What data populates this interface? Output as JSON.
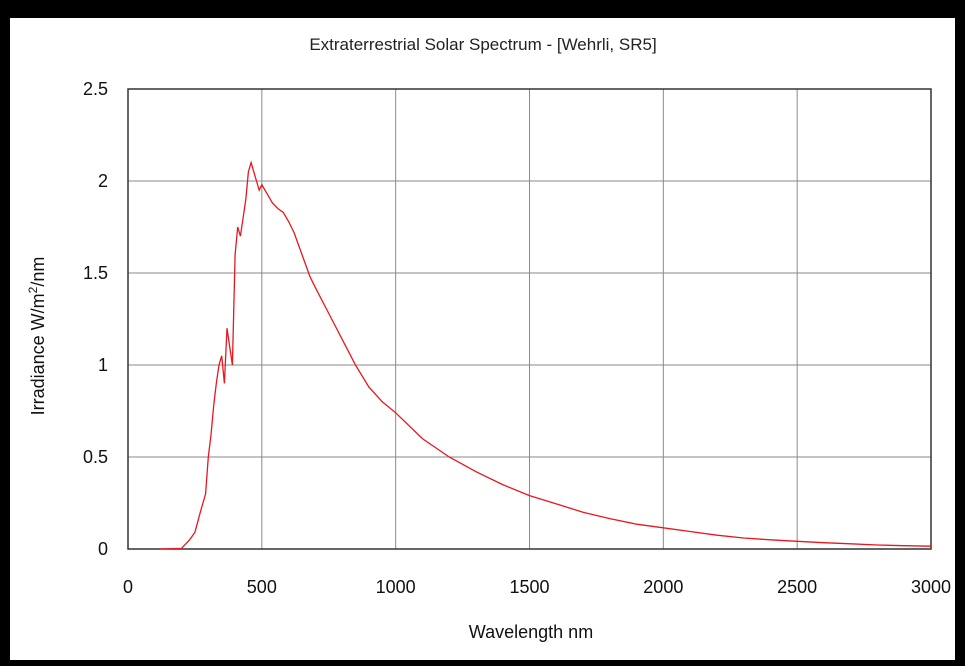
{
  "chart_data": {
    "type": "line",
    "title": "Extraterrestrial Solar Spectrum - [Wehrli, SR5]",
    "xlabel": "Wavelength nm",
    "ylabel_main": "Irradiance W/m",
    "ylabel_sup": "2",
    "ylabel_tail": "/nm",
    "xlim": [
      0,
      3000
    ],
    "ylim": [
      0,
      2.5
    ],
    "xticks": [
      "0",
      "500",
      "1000",
      "1500",
      "2000",
      "2500",
      "3000"
    ],
    "yticks": [
      "0",
      "0.5",
      "1",
      "1.5",
      "2",
      "2.5"
    ],
    "grid": true,
    "line_color": "#e8171f",
    "series": [
      {
        "x": [
          120,
          200,
          230,
          250,
          270,
          290,
          300,
          310,
          320,
          330,
          340,
          350,
          360,
          370,
          380,
          390,
          400,
          410,
          420,
          430,
          440,
          450,
          460,
          470,
          480,
          490,
          500,
          520,
          540,
          560,
          580,
          600,
          620,
          650,
          680,
          700,
          750,
          800,
          850,
          900,
          950,
          1000,
          1100,
          1200,
          1300,
          1400,
          1500,
          1600,
          1700,
          1800,
          1900,
          2000,
          2100,
          2200,
          2300,
          2400,
          2500,
          2600,
          2700,
          2800,
          2900,
          3000
        ],
        "y": [
          0.0,
          0.003,
          0.05,
          0.09,
          0.2,
          0.3,
          0.5,
          0.62,
          0.78,
          0.9,
          1.0,
          1.05,
          0.9,
          1.2,
          1.1,
          1.0,
          1.6,
          1.75,
          1.7,
          1.8,
          1.9,
          2.05,
          2.1,
          2.05,
          2.0,
          1.95,
          1.98,
          1.93,
          1.88,
          1.85,
          1.83,
          1.78,
          1.72,
          1.6,
          1.48,
          1.42,
          1.28,
          1.14,
          1.0,
          0.88,
          0.8,
          0.74,
          0.6,
          0.5,
          0.42,
          0.35,
          0.29,
          0.245,
          0.2,
          0.165,
          0.135,
          0.115,
          0.095,
          0.075,
          0.06,
          0.05,
          0.042,
          0.034,
          0.028,
          0.022,
          0.018,
          0.015
        ]
      }
    ]
  }
}
